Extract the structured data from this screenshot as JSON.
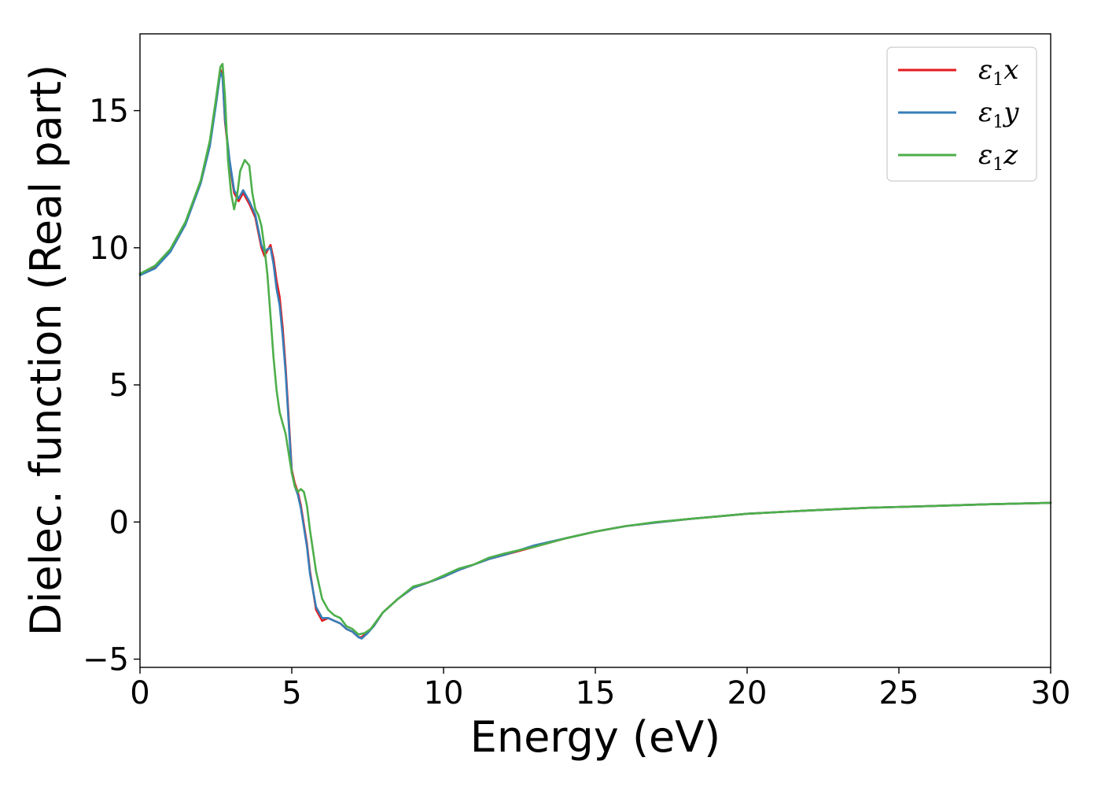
{
  "chart_data": {
    "type": "line",
    "title": "",
    "xlabel": "Energy (eV)",
    "ylabel": "Dielec. function (Real part)",
    "xlim": [
      0,
      30
    ],
    "ylim": [
      -5.3,
      17.8
    ],
    "x_ticks": [
      0,
      5,
      10,
      15,
      20,
      25,
      30
    ],
    "y_ticks": [
      -5,
      0,
      5,
      10,
      15
    ],
    "x_tick_labels": [
      "0",
      "5",
      "10",
      "15",
      "20",
      "25",
      "30"
    ],
    "y_tick_labels": [
      "−5",
      "0",
      "5",
      "10",
      "15"
    ],
    "grid": false,
    "legend_position": "top-right",
    "series": [
      {
        "name": "ε1x",
        "legend_base": "ε",
        "legend_sub": "1",
        "legend_tail": "x",
        "color": "#e41a1c",
        "x": [
          0,
          0.5,
          1,
          1.5,
          2,
          2.3,
          2.5,
          2.65,
          2.72,
          2.8,
          2.95,
          3.1,
          3.25,
          3.4,
          3.5,
          3.6,
          3.8,
          4.0,
          4.1,
          4.2,
          4.3,
          4.4,
          4.5,
          4.6,
          4.7,
          4.8,
          4.9,
          5.0,
          5.1,
          5.2,
          5.3,
          5.5,
          5.6,
          5.8,
          6.0,
          6.2,
          6.4,
          6.6,
          6.8,
          7.0,
          7.2,
          7.3,
          7.5,
          7.7,
          8.0,
          8.5,
          9.0,
          9.5,
          10.0,
          10.5,
          11.0,
          11.5,
          12.0,
          13.0,
          14.0,
          15.0,
          16.0,
          17.0,
          18.0,
          19.0,
          20.0,
          22.0,
          24.0,
          26.0,
          28.0,
          30.0
        ],
        "y": [
          9.05,
          9.3,
          9.9,
          10.9,
          12.4,
          13.8,
          15.3,
          16.5,
          16.3,
          14.6,
          13.1,
          12.0,
          11.7,
          12.0,
          11.8,
          11.6,
          11.1,
          10.0,
          9.7,
          9.9,
          10.1,
          9.6,
          8.8,
          8.2,
          7.1,
          5.6,
          3.8,
          1.9,
          1.4,
          1.1,
          0.6,
          -0.8,
          -1.8,
          -3.2,
          -3.6,
          -3.5,
          -3.6,
          -3.7,
          -3.9,
          -4.0,
          -4.2,
          -4.2,
          -4.0,
          -3.8,
          -3.3,
          -2.8,
          -2.4,
          -2.2,
          -2.0,
          -1.75,
          -1.55,
          -1.35,
          -1.2,
          -0.9,
          -0.6,
          -0.35,
          -0.15,
          -0.02,
          0.1,
          0.2,
          0.3,
          0.42,
          0.52,
          0.58,
          0.65,
          0.7
        ]
      },
      {
        "name": "ε1y",
        "legend_base": "ε",
        "legend_sub": "1",
        "legend_tail": "y",
        "color": "#377eb8",
        "x": [
          0,
          0.5,
          1,
          1.5,
          2,
          2.3,
          2.5,
          2.65,
          2.72,
          2.8,
          2.95,
          3.1,
          3.25,
          3.4,
          3.5,
          3.6,
          3.8,
          4.0,
          4.1,
          4.2,
          4.3,
          4.4,
          4.5,
          4.6,
          4.7,
          4.8,
          4.9,
          5.0,
          5.1,
          5.2,
          5.3,
          5.5,
          5.6,
          5.8,
          6.0,
          6.2,
          6.4,
          6.6,
          6.8,
          7.0,
          7.2,
          7.3,
          7.5,
          7.7,
          8.0,
          8.5,
          9.0,
          9.5,
          10.0,
          10.5,
          11.0,
          11.5,
          12.0,
          13.0,
          14.0,
          15.0,
          16.0,
          17.0,
          18.0,
          19.0,
          20.0,
          22.0,
          24.0,
          26.0,
          28.0,
          30.0
        ],
        "y": [
          9.0,
          9.25,
          9.85,
          10.85,
          12.35,
          13.7,
          15.2,
          16.4,
          16.2,
          14.7,
          13.2,
          12.1,
          11.8,
          12.1,
          11.9,
          11.7,
          11.2,
          10.1,
          9.85,
          9.95,
          10.0,
          9.4,
          8.5,
          7.9,
          6.8,
          5.4,
          3.6,
          1.8,
          1.3,
          1.0,
          0.5,
          -0.9,
          -1.9,
          -3.1,
          -3.5,
          -3.5,
          -3.6,
          -3.7,
          -3.9,
          -4.0,
          -4.2,
          -4.25,
          -4.05,
          -3.8,
          -3.3,
          -2.8,
          -2.4,
          -2.2,
          -2.0,
          -1.75,
          -1.55,
          -1.35,
          -1.2,
          -0.85,
          -0.6,
          -0.35,
          -0.15,
          -0.02,
          0.1,
          0.2,
          0.3,
          0.42,
          0.52,
          0.58,
          0.65,
          0.7
        ]
      },
      {
        "name": "ε1z",
        "legend_base": "ε",
        "legend_sub": "1",
        "legend_tail": "z",
        "color": "#4daf4a",
        "x": [
          0,
          0.5,
          1,
          1.5,
          2,
          2.3,
          2.5,
          2.65,
          2.72,
          2.8,
          2.9,
          3.0,
          3.1,
          3.2,
          3.3,
          3.45,
          3.6,
          3.7,
          3.8,
          3.9,
          4.0,
          4.1,
          4.2,
          4.3,
          4.4,
          4.5,
          4.6,
          4.7,
          4.8,
          4.9,
          5.0,
          5.1,
          5.2,
          5.3,
          5.4,
          5.5,
          5.6,
          5.8,
          6.0,
          6.2,
          6.4,
          6.6,
          6.8,
          7.0,
          7.2,
          7.4,
          7.6,
          8.0,
          8.5,
          9.0,
          9.5,
          10.0,
          10.5,
          11.0,
          11.5,
          12.0,
          13.0,
          14.0,
          15.0,
          16.0,
          17.0,
          18.0,
          19.0,
          20.0,
          22.0,
          24.0,
          26.0,
          28.0,
          30.0
        ],
        "y": [
          9.05,
          9.35,
          9.95,
          10.95,
          12.45,
          13.9,
          15.4,
          16.6,
          16.7,
          15.5,
          13.2,
          12.0,
          11.4,
          11.9,
          12.8,
          13.2,
          13.0,
          12.0,
          11.4,
          11.2,
          10.8,
          10.0,
          9.0,
          7.5,
          6.0,
          4.8,
          4.0,
          3.6,
          3.2,
          2.5,
          1.8,
          1.3,
          1.1,
          1.2,
          1.1,
          0.6,
          -0.3,
          -1.8,
          -2.8,
          -3.2,
          -3.4,
          -3.5,
          -3.8,
          -3.9,
          -4.1,
          -4.05,
          -3.9,
          -3.3,
          -2.8,
          -2.35,
          -2.2,
          -1.95,
          -1.7,
          -1.55,
          -1.3,
          -1.15,
          -0.9,
          -0.6,
          -0.35,
          -0.15,
          0.0,
          0.1,
          0.2,
          0.3,
          0.42,
          0.52,
          0.58,
          0.65,
          0.7
        ]
      }
    ]
  }
}
